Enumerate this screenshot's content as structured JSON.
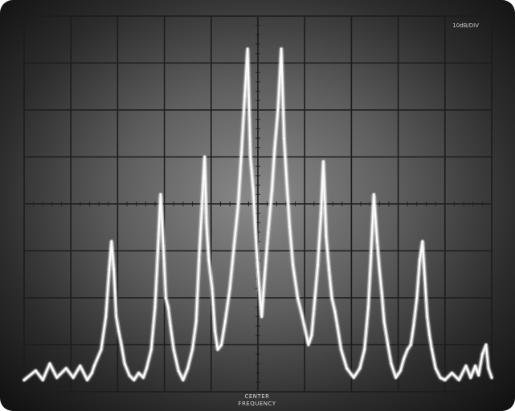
{
  "screen": {
    "top_right_label": "10dB/DIV",
    "center_label_line1": "CENTER",
    "center_label_line2": "FREQUENCY"
  },
  "chart_data": {
    "type": "line",
    "title": "",
    "xlabel": "",
    "ylabel": "",
    "grid": true,
    "grid_divisions": {
      "x": 10,
      "y": 8
    },
    "xlim": [
      0,
      10
    ],
    "ylim": [
      0,
      8
    ],
    "center_marker_x": 5,
    "series": [
      {
        "values": [
          [
            0.0,
            0.25
          ],
          [
            0.25,
            0.45
          ],
          [
            0.4,
            0.25
          ],
          [
            0.55,
            0.6
          ],
          [
            0.7,
            0.3
          ],
          [
            0.9,
            0.5
          ],
          [
            1.05,
            0.3
          ],
          [
            1.2,
            0.55
          ],
          [
            1.35,
            0.25
          ],
          [
            1.45,
            0.4
          ],
          [
            1.5,
            0.55
          ],
          [
            1.65,
            0.9
          ],
          [
            1.75,
            1.6
          ],
          [
            1.82,
            2.6
          ],
          [
            1.87,
            3.2
          ],
          [
            1.92,
            2.6
          ],
          [
            1.97,
            1.6
          ],
          [
            2.02,
            1.3
          ],
          [
            2.08,
            1.0
          ],
          [
            2.15,
            0.6
          ],
          [
            2.25,
            0.35
          ],
          [
            2.35,
            0.25
          ],
          [
            2.45,
            0.4
          ],
          [
            2.55,
            0.3
          ],
          [
            2.62,
            0.5
          ],
          [
            2.72,
            0.9
          ],
          [
            2.8,
            1.8
          ],
          [
            2.86,
            3.0
          ],
          [
            2.92,
            4.2
          ],
          [
            2.98,
            3.1
          ],
          [
            3.03,
            2.0
          ],
          [
            3.08,
            1.8
          ],
          [
            3.13,
            1.4
          ],
          [
            3.2,
            0.9
          ],
          [
            3.3,
            0.45
          ],
          [
            3.4,
            0.25
          ],
          [
            3.5,
            0.5
          ],
          [
            3.6,
            0.9
          ],
          [
            3.68,
            1.5
          ],
          [
            3.74,
            2.8
          ],
          [
            3.8,
            3.9
          ],
          [
            3.86,
            5.0
          ],
          [
            3.9,
            3.6
          ],
          [
            3.95,
            2.8
          ],
          [
            4.02,
            2.2
          ],
          [
            4.08,
            1.3
          ],
          [
            4.14,
            0.9
          ],
          [
            4.22,
            1.0
          ],
          [
            4.3,
            1.5
          ],
          [
            4.4,
            2.2
          ],
          [
            4.5,
            3.2
          ],
          [
            4.58,
            4.0
          ],
          [
            4.65,
            5.1
          ],
          [
            4.72,
            6.3
          ],
          [
            4.78,
            7.3
          ],
          [
            4.84,
            5.0
          ],
          [
            4.9,
            4.3
          ],
          [
            4.95,
            3.4
          ],
          [
            5.02,
            2.3
          ],
          [
            5.08,
            1.6
          ],
          [
            5.14,
            2.4
          ],
          [
            5.22,
            3.4
          ],
          [
            5.3,
            4.3
          ],
          [
            5.36,
            5.2
          ],
          [
            5.43,
            6.0
          ],
          [
            5.5,
            7.3
          ],
          [
            5.56,
            5.4
          ],
          [
            5.62,
            4.4
          ],
          [
            5.68,
            3.5
          ],
          [
            5.75,
            2.7
          ],
          [
            5.85,
            2.0
          ],
          [
            5.95,
            1.6
          ],
          [
            6.08,
            1.0
          ],
          [
            6.15,
            1.2
          ],
          [
            6.22,
            2.0
          ],
          [
            6.28,
            2.7
          ],
          [
            6.35,
            3.8
          ],
          [
            6.4,
            4.9
          ],
          [
            6.46,
            3.3
          ],
          [
            6.52,
            2.6
          ],
          [
            6.58,
            2.0
          ],
          [
            6.65,
            1.7
          ],
          [
            6.7,
            1.4
          ],
          [
            6.78,
            0.9
          ],
          [
            6.9,
            0.5
          ],
          [
            7.05,
            0.3
          ],
          [
            7.18,
            0.5
          ],
          [
            7.28,
            0.9
          ],
          [
            7.36,
            1.8
          ],
          [
            7.42,
            2.9
          ],
          [
            7.48,
            4.2
          ],
          [
            7.55,
            3.2
          ],
          [
            7.6,
            2.6
          ],
          [
            7.65,
            2.1
          ],
          [
            7.7,
            1.5
          ],
          [
            7.78,
            1.0
          ],
          [
            7.85,
            0.6
          ],
          [
            7.95,
            0.3
          ],
          [
            8.05,
            0.45
          ],
          [
            8.12,
            0.7
          ],
          [
            8.2,
            0.9
          ],
          [
            8.27,
            1.0
          ],
          [
            8.33,
            1.4
          ],
          [
            8.4,
            2.0
          ],
          [
            8.46,
            2.8
          ],
          [
            8.52,
            3.2
          ],
          [
            8.57,
            2.4
          ],
          [
            8.62,
            1.6
          ],
          [
            8.67,
            1.2
          ],
          [
            8.72,
            0.9
          ],
          [
            8.8,
            0.5
          ],
          [
            8.9,
            0.3
          ],
          [
            9.0,
            0.25
          ],
          [
            9.15,
            0.4
          ],
          [
            9.3,
            0.25
          ],
          [
            9.45,
            0.55
          ],
          [
            9.55,
            0.3
          ],
          [
            9.65,
            0.55
          ],
          [
            9.72,
            0.35
          ],
          [
            9.8,
            0.8
          ],
          [
            9.88,
            1.0
          ],
          [
            9.93,
            0.5
          ],
          [
            10.0,
            0.3
          ]
        ]
      }
    ]
  }
}
